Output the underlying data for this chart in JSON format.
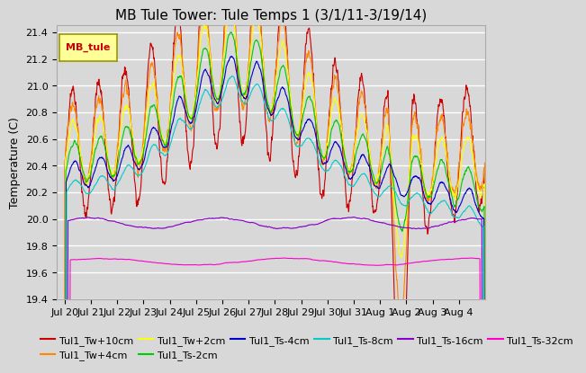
{
  "title": "MB Tule Tower: Tule Temps 1 (3/1/11-3/19/14)",
  "ylabel": "Temperature (C)",
  "ylim": [
    19.4,
    21.45
  ],
  "yticks": [
    19.4,
    19.6,
    19.8,
    20.0,
    20.2,
    20.4,
    20.6,
    20.8,
    21.0,
    21.2,
    21.4
  ],
  "xlabel_ticks": [
    "Jul 20",
    "Jul 21",
    "Jul 22",
    "Jul 23",
    "Jul 24",
    "Jul 25",
    "Jul 26",
    "Jul 27",
    "Jul 28",
    "Jul 29",
    "Jul 30",
    "Jul 31",
    "Aug 1",
    "Aug 2",
    "Aug 3",
    "Aug 4"
  ],
  "series": [
    {
      "label": "Tul1_Tw+10cm",
      "color": "#cc0000"
    },
    {
      "label": "Tul1_Tw+4cm",
      "color": "#ff8800"
    },
    {
      "label": "Tul1_Tw+2cm",
      "color": "#ffff00"
    },
    {
      "label": "Tul1_Ts-2cm",
      "color": "#00cc00"
    },
    {
      "label": "Tul1_Ts-4cm",
      "color": "#0000cc"
    },
    {
      "label": "Tul1_Ts-8cm",
      "color": "#00cccc"
    },
    {
      "label": "Tul1_Ts-16cm",
      "color": "#8800cc"
    },
    {
      "label": "Tul1_Ts-32cm",
      "color": "#ff00cc"
    }
  ],
  "inset_label": "MB_tule",
  "inset_color": "#cc0000",
  "inset_bg": "#ffff99",
  "background_color": "#d8d8d8",
  "plot_bg": "#d8d8d8",
  "grid_color": "#ffffff",
  "title_fontsize": 11,
  "tick_fontsize": 8,
  "legend_fontsize": 8
}
